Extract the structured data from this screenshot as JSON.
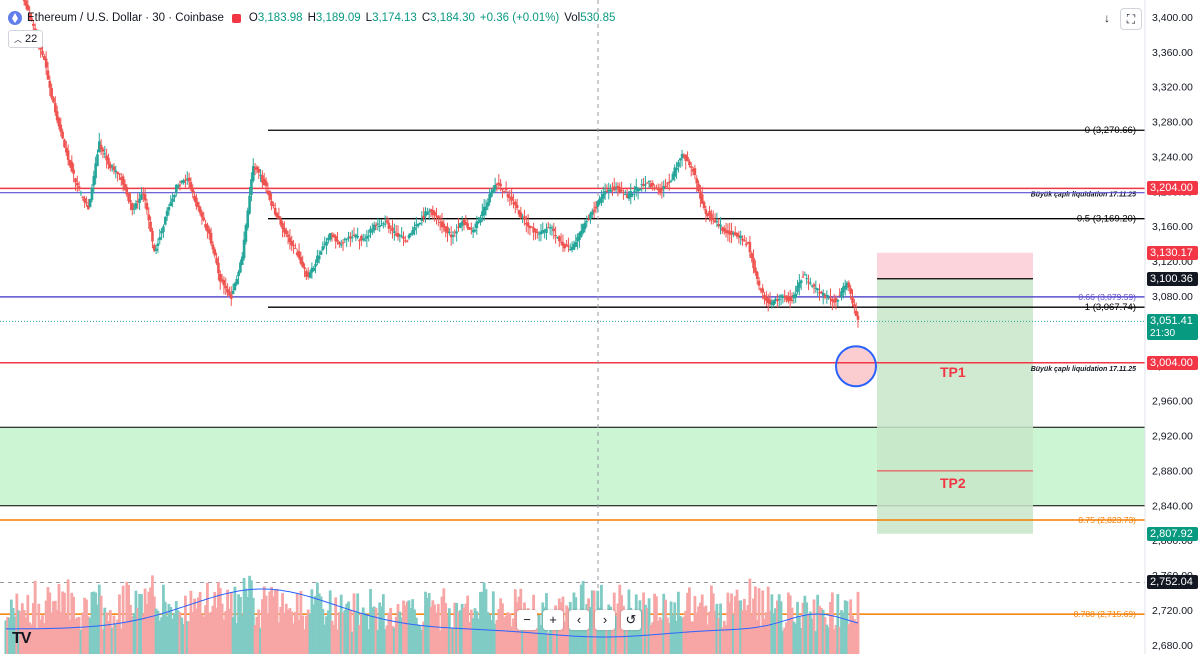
{
  "header": {
    "symbol": "Ethereum / U.S. Dollar · 30 · Coinbase",
    "open_label": "O",
    "open": "3,183.98",
    "high_label": "H",
    "high": "3,189.09",
    "low_label": "L",
    "low": "3,174.13",
    "close_label": "C",
    "close": "3,184.30",
    "change": "+0.36 (+0.01%)",
    "vol_label": "Vol",
    "vol": "530.85",
    "indicator_count": "22",
    "coin_icon": "ethereum-icon",
    "download_icon": "arrow-down-icon",
    "fullscreen_icon": "fullscreen-icon"
  },
  "colors": {
    "up": "#26a69a",
    "down": "#ef5350",
    "vol_up": "#80cbc4",
    "vol_down": "#f7a5a5",
    "red_line": "#f23645",
    "purple": "#5b4fd0",
    "orange": "#f57c00",
    "ma": "#2962ff",
    "support_zone": "#ccf5d3",
    "stop_zone": "#fcd5dc",
    "target_zone": "#c8e6c9"
  },
  "nav": {
    "zoom_out": "−",
    "zoom_in": "+",
    "scroll_left": "‹",
    "scroll_right": "›",
    "reset": "↺"
  },
  "logo": "TV",
  "chart_data": {
    "type": "candlestick",
    "title": "Ethereum / U.S. Dollar · 30 · Coinbase",
    "ylim": [
      2670,
      3420
    ],
    "grid": false,
    "y_ticks": [
      3400,
      3360,
      3320,
      3280,
      3240,
      3200,
      3160,
      3120,
      3080,
      3040,
      3000,
      2960,
      2920,
      2880,
      2840,
      2800,
      2760,
      2720,
      2680
    ],
    "y_tick_labels": [
      "3,400.00",
      "3,360.00",
      "3,320.00",
      "3,280.00",
      "3,240.00",
      "3,200.00",
      "3,160.00",
      "3,120.00",
      "3,080.00",
      "3,040.00",
      "3,000.00",
      "2,960.00",
      "2,920.00",
      "2,880.00",
      "2,840.00",
      "2,800.00",
      "2,760.00",
      "2,720.00",
      "2,680.00"
    ],
    "price_path": [
      [
        0,
        3430
      ],
      [
        8,
        3440
      ],
      [
        14,
        3400
      ],
      [
        22,
        3350
      ],
      [
        28,
        3290
      ],
      [
        34,
        3245
      ],
      [
        40,
        3205
      ],
      [
        46,
        3180
      ],
      [
        52,
        3255
      ],
      [
        58,
        3230
      ],
      [
        64,
        3215
      ],
      [
        70,
        3180
      ],
      [
        76,
        3200
      ],
      [
        82,
        3130
      ],
      [
        88,
        3170
      ],
      [
        94,
        3205
      ],
      [
        100,
        3215
      ],
      [
        106,
        3180
      ],
      [
        112,
        3150
      ],
      [
        118,
        3100
      ],
      [
        124,
        3080
      ],
      [
        130,
        3125
      ],
      [
        136,
        3230
      ],
      [
        142,
        3210
      ],
      [
        148,
        3175
      ],
      [
        154,
        3150
      ],
      [
        160,
        3130
      ],
      [
        166,
        3100
      ],
      [
        172,
        3130
      ],
      [
        178,
        3150
      ],
      [
        184,
        3140
      ],
      [
        190,
        3150
      ],
      [
        196,
        3145
      ],
      [
        202,
        3160
      ],
      [
        208,
        3165
      ],
      [
        214,
        3150
      ],
      [
        220,
        3145
      ],
      [
        226,
        3165
      ],
      [
        232,
        3180
      ],
      [
        238,
        3165
      ],
      [
        244,
        3150
      ],
      [
        250,
        3165
      ],
      [
        256,
        3155
      ],
      [
        262,
        3180
      ],
      [
        268,
        3210
      ],
      [
        274,
        3200
      ],
      [
        280,
        3180
      ],
      [
        286,
        3160
      ],
      [
        292,
        3150
      ],
      [
        298,
        3160
      ],
      [
        304,
        3140
      ],
      [
        310,
        3135
      ],
      [
        316,
        3160
      ],
      [
        322,
        3180
      ],
      [
        328,
        3200
      ],
      [
        334,
        3205
      ],
      [
        340,
        3195
      ],
      [
        346,
        3205
      ],
      [
        352,
        3210
      ],
      [
        358,
        3200
      ],
      [
        364,
        3215
      ],
      [
        370,
        3245
      ],
      [
        376,
        3225
      ],
      [
        382,
        3180
      ],
      [
        388,
        3165
      ],
      [
        394,
        3155
      ],
      [
        400,
        3150
      ],
      [
        406,
        3140
      ],
      [
        412,
        3090
      ],
      [
        418,
        3070
      ],
      [
        424,
        3080
      ],
      [
        430,
        3075
      ],
      [
        436,
        3105
      ],
      [
        442,
        3090
      ],
      [
        448,
        3080
      ],
      [
        454,
        3075
      ],
      [
        460,
        3095
      ],
      [
        466,
        3051.41
      ]
    ],
    "series": [
      {
        "name": "Volume",
        "type": "volume"
      },
      {
        "name": "MA",
        "type": "moving-average"
      }
    ],
    "horizontal_lines": [
      {
        "price": 3270.66,
        "label": "0 (3,270.66)",
        "color": "#000000"
      },
      {
        "price": 3204.0,
        "label": "Büyük çaplı liquidation 17.11.25",
        "color": "#f23645"
      },
      {
        "price": 3169.2,
        "label": "0.5 (3,169.20)",
        "color": "#000000"
      },
      {
        "price": 3079.59,
        "label": "0.66 (3,079.59)",
        "color": "#5b4fd0"
      },
      {
        "price": 3067.74,
        "label": "1 (3,067.74)",
        "color": "#000000"
      },
      {
        "price": 3004.0,
        "label": "Büyük çaplı liquidation 17.11.25",
        "color": "#f23645"
      },
      {
        "price": 2823.73,
        "label": "0.75 (2,823.73)",
        "color": "#f57c00"
      },
      {
        "price": 2715.69,
        "label": "0.788 (2,715.69)",
        "color": "#f57c00"
      }
    ],
    "support_zone": {
      "top": 2930,
      "bottom": 2840
    },
    "position": {
      "stop": 3130.17,
      "entry": 3100.36,
      "tp1": 3004.0,
      "tp2": 2880,
      "target": 2807.92
    },
    "annotations": [
      "TP1",
      "TP2"
    ],
    "price_tags": [
      {
        "price": 3204.0,
        "label": "3,204.00",
        "color": "#f23645"
      },
      {
        "price": 3130.17,
        "label": "3,130.17",
        "color": "#f23645"
      },
      {
        "price": 3100.36,
        "label": "3,100.36",
        "color": "#131722"
      },
      {
        "price": 3051.41,
        "label": "3,051.41",
        "sub": "21:30",
        "color": "#089981"
      },
      {
        "price": 3004.0,
        "label": "3,004.00",
        "color": "#f23645"
      },
      {
        "price": 2807.92,
        "label": "2,807.92",
        "color": "#089981"
      },
      {
        "price": 2752.04,
        "label": "2,752.04",
        "color": "#131722"
      }
    ]
  }
}
